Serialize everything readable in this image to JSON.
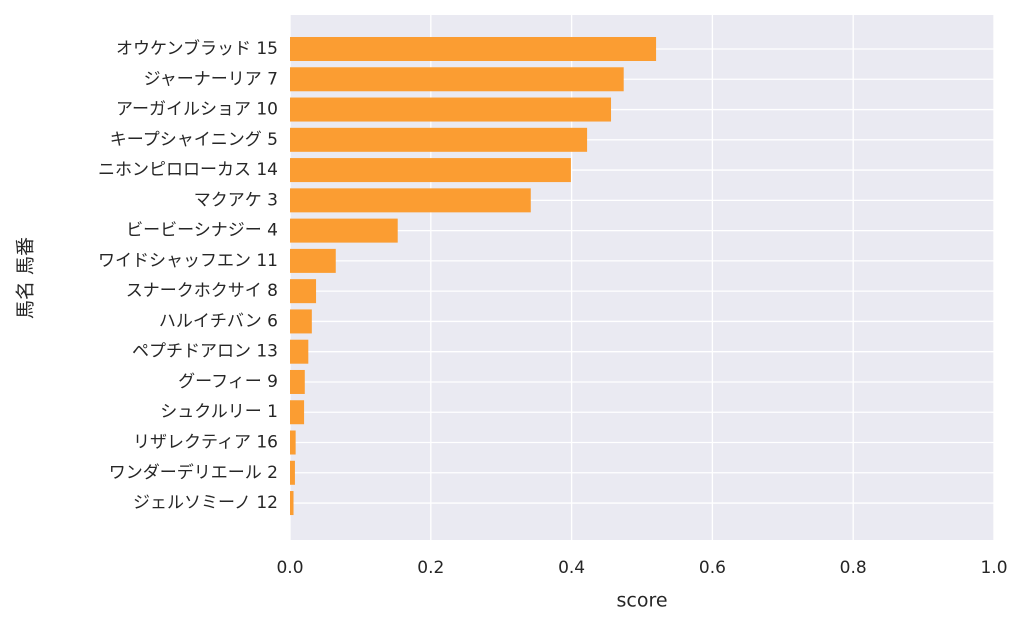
{
  "chart_data": {
    "type": "barh",
    "xlabel": "score",
    "ylabel": "馬名 馬番",
    "categories": [
      "オウケンブラッド 15",
      "ジャーナーリア 7",
      "アーガイルショア 10",
      "キープシャイニング 5",
      "ニホンピロローカス 14",
      "マクアケ 3",
      "ビービーシナジー 4",
      "ワイドシャッフエン 11",
      "スナークホクサイ 8",
      "ハルイチバン 6",
      "ペプチドアロン 13",
      "グーフィー 9",
      "シュクルリー 1",
      "リザレクティア 16",
      "ワンダーデリエール 2",
      "ジェルソミーノ 12"
    ],
    "values": [
      0.52,
      0.474,
      0.456,
      0.422,
      0.399,
      0.342,
      0.153,
      0.065,
      0.037,
      0.031,
      0.026,
      0.021,
      0.02,
      0.008,
      0.007,
      0.005
    ],
    "color": "#fb9d32",
    "xlim": [
      0,
      1
    ],
    "xticks": [
      {
        "value": 0,
        "label": "0.0"
      },
      0.2,
      0.4,
      0.6,
      0.8,
      {
        "value": 1,
        "label": "1.0"
      }
    ],
    "grid": true
  }
}
